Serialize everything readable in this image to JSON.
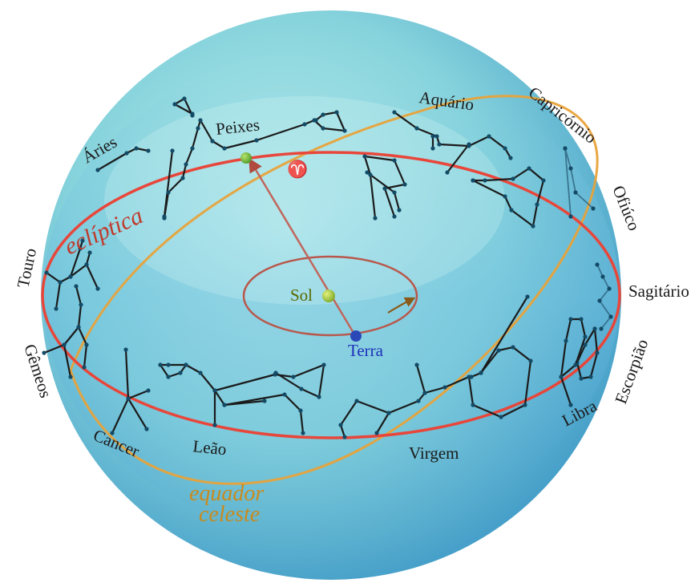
{
  "labels": {
    "aries": "Áries",
    "peixes": "Peixes",
    "aquario": "Aquário",
    "capricornio": "Capricórnio",
    "ofiuco": "Ofiúco",
    "sagitario": "Sagitário",
    "escorpiao": "Escorpião",
    "libra": "Libra",
    "virgem": "Virgem",
    "leao": "Leão",
    "cancer": "Cancer",
    "gemeos": "Gêmeos",
    "touro": "Touro",
    "ecliptica": "eclíptica",
    "equador_line1": "equador",
    "equador_line2": "celeste",
    "sol": "Sol",
    "terra": "Terra",
    "aries_symbol": "♈"
  },
  "colors": {
    "sphere_light": "#a8e3e6",
    "sphere_dark": "#3f9fc7",
    "ecliptic": "#e8463a",
    "celestial_equator": "#e8a23a",
    "earth_orbit": "#b8584c",
    "sun": "#a9c63a",
    "earth": "#2a48b8"
  }
}
